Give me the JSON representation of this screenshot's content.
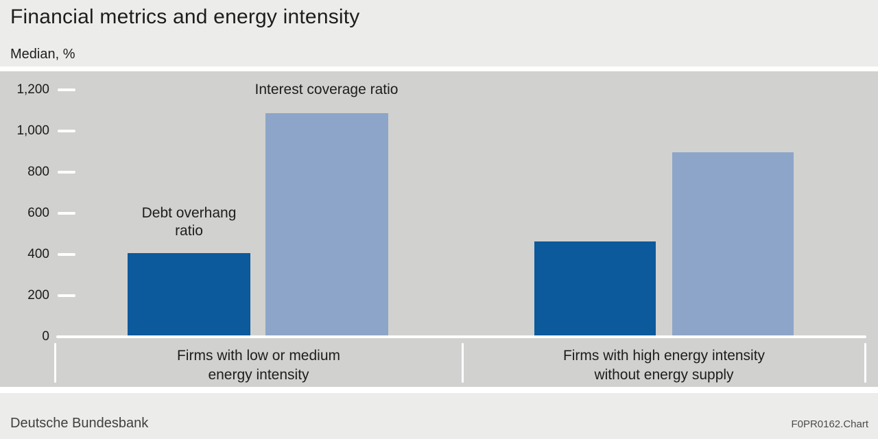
{
  "header": {
    "title": "Financial metrics and energy intensity",
    "subtitle": "Median, %"
  },
  "footer": {
    "source": "Deutsche Bundesbank",
    "chart_id": "F0PR0162.Chart"
  },
  "colors": {
    "header_bg": "#ececeb",
    "plot_bg": "#d1d1cf",
    "divider": "#ffffff",
    "text": "#1d1d1b",
    "footer_text": "#3f3f3e",
    "debt_overhang_bar": "#0c599c",
    "interest_coverage_bar": "#8da5c8"
  },
  "chart_data": {
    "type": "bar",
    "title": "Financial metrics and energy intensity",
    "subtitle": "Median, %",
    "unit": "%",
    "categories": [
      "Firms with low or medium energy intensity",
      "Firms with high energy intensity without energy supply"
    ],
    "categories_lines": [
      [
        "Firms with low or medium",
        "energy intensity"
      ],
      [
        "Firms with high energy intensity",
        "without energy supply"
      ]
    ],
    "series": [
      {
        "name": "Debt overhang ratio",
        "color": "#0c599c",
        "values": [
          400,
          455
        ]
      },
      {
        "name": "Interest coverage ratio",
        "color": "#8da5c8",
        "values": [
          1080,
          890
        ]
      }
    ],
    "ylim": [
      0,
      1200
    ],
    "yticks": [
      0,
      200,
      400,
      600,
      800,
      1000,
      1200
    ],
    "ytick_labels": [
      "0",
      "200",
      "400",
      "600",
      "800",
      "1,000",
      "1,200"
    ],
    "grid": "off",
    "legend": "labels-on-plot"
  }
}
